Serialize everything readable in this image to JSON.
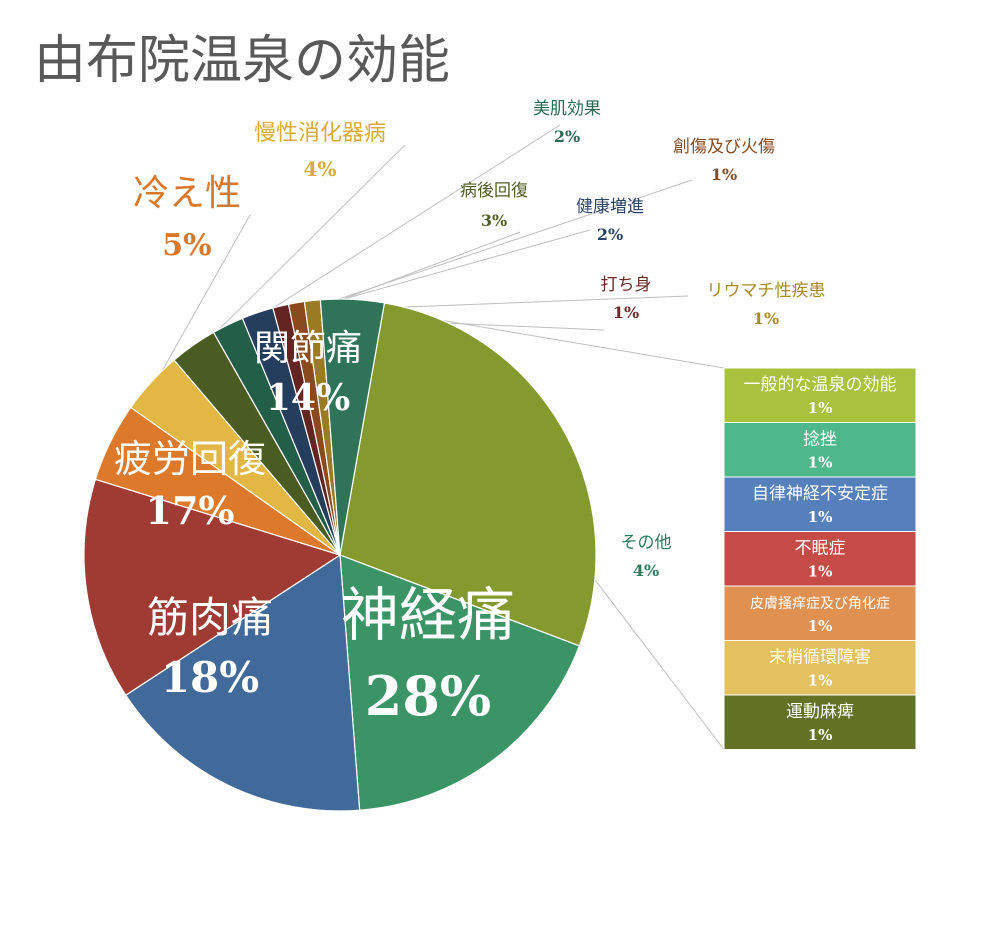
{
  "title": "由布院温泉の効能",
  "chart_data": {
    "type": "pie",
    "title": "由布院温泉の効能",
    "slices": [
      {
        "label": "神経痛",
        "value": 28,
        "pct": "28%",
        "color": "#849a2e",
        "text_color": "#ffffff"
      },
      {
        "label": "筋肉痛",
        "value": 18,
        "pct": "18%",
        "color": "#3a9466",
        "text_color": "#ffffff"
      },
      {
        "label": "疲労回復",
        "value": 17,
        "pct": "17%",
        "color": "#416a9a",
        "text_color": "#ffffff"
      },
      {
        "label": "関節痛",
        "value": 14,
        "pct": "14%",
        "color": "#a03b34",
        "text_color": "#ffffff"
      },
      {
        "label": "冷え性",
        "value": 5,
        "pct": "5%",
        "color": "#dd792b",
        "text_color": "#d9772a"
      },
      {
        "label": "慢性消化器病",
        "value": 4,
        "pct": "4%",
        "color": "#e2b744",
        "text_color": "#d9ab38"
      },
      {
        "label": "病後回復",
        "value": 3,
        "pct": "3%",
        "color": "#4b5c22",
        "text_color": "#4f5d23"
      },
      {
        "label": "美肌効果",
        "value": 2,
        "pct": "2%",
        "color": "#235f48",
        "text_color": "#2a6a52"
      },
      {
        "label": "健康増進",
        "value": 2,
        "pct": "2%",
        "color": "#253e5e",
        "text_color": "#2a4568"
      },
      {
        "label": "打ち身",
        "value": 1,
        "pct": "1%",
        "color": "#642522",
        "text_color": "#6e2a25"
      },
      {
        "label": "創傷及び火傷",
        "value": 1,
        "pct": "1%",
        "color": "#8a4a1d",
        "text_color": "#8a4a1d"
      },
      {
        "label": "リウマチ性疾患",
        "value": 1,
        "pct": "1%",
        "color": "#9a7a22",
        "text_color": "#a98a28"
      },
      {
        "label": "その他",
        "value": 4,
        "pct": "4%",
        "color": "#2f7458",
        "text_color": "#2f7a5b"
      }
    ],
    "other_breakdown": [
      {
        "label": "一般的な温泉の効能",
        "pct": "1%",
        "color": "#a9c23e"
      },
      {
        "label": "捻挫",
        "pct": "1%",
        "color": "#4fb88a"
      },
      {
        "label": "自律神経不安定症",
        "pct": "1%",
        "color": "#5580bb"
      },
      {
        "label": "不眠症",
        "pct": "1%",
        "color": "#c64a45"
      },
      {
        "label": "皮膚掻痒症及び角化症",
        "pct": "1%",
        "color": "#e09050"
      },
      {
        "label": "末梢循環障害",
        "pct": "1%",
        "color": "#e3c060"
      },
      {
        "label": "運動麻痺",
        "pct": "1%",
        "color": "#627124"
      }
    ]
  }
}
